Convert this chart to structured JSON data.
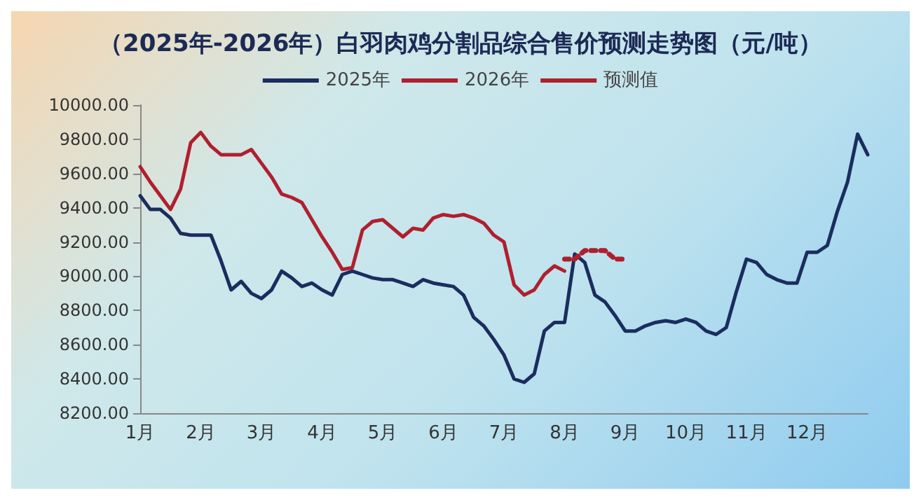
{
  "chart_data": {
    "type": "line",
    "title": "（2025年-2026年）白羽肉鸡分割品综合售价预测走势图（元/吨）",
    "categories": [
      "1月",
      null,
      null,
      null,
      null,
      null,
      "2月",
      null,
      null,
      null,
      null,
      null,
      "3月",
      null,
      null,
      null,
      null,
      null,
      "4月",
      null,
      null,
      null,
      null,
      null,
      "5月",
      null,
      null,
      null,
      null,
      null,
      "6月",
      null,
      null,
      null,
      null,
      null,
      "7月",
      null,
      null,
      null,
      null,
      null,
      "8月",
      null,
      null,
      null,
      null,
      null,
      "9月",
      null,
      null,
      null,
      null,
      null,
      "10月",
      null,
      null,
      null,
      null,
      null,
      "11月",
      null,
      null,
      null,
      null,
      null,
      "12月",
      null,
      null,
      null,
      null,
      null,
      null
    ],
    "series": [
      {
        "name": "2025年",
        "color": "#1b2d5e",
        "values": [
          9470,
          9390,
          9390,
          9340,
          9250,
          9240,
          9240,
          9240,
          9090,
          8920,
          8970,
          8900,
          8870,
          8920,
          9030,
          8990,
          8940,
          8960,
          8920,
          8890,
          9010,
          9030,
          9010,
          8990,
          8980,
          8980,
          8960,
          8940,
          8980,
          8960,
          8950,
          8940,
          8890,
          8760,
          8710,
          8630,
          8540,
          8400,
          8380,
          8430,
          8680,
          8730,
          8730,
          9130,
          9080,
          8890,
          8850,
          8770,
          8680,
          8680,
          8710,
          8730,
          8740,
          8730,
          8750,
          8730,
          8680,
          8660,
          8700,
          8910,
          9100,
          9080,
          9010,
          8980,
          8960,
          8960,
          9140,
          9140,
          9180,
          9380,
          9550,
          9830,
          9710
        ]
      },
      {
        "name": "2026年",
        "color": "#b01f2e",
        "values": [
          9640,
          9550,
          9470,
          9390,
          9510,
          9780,
          9840,
          9760,
          9710,
          9710,
          9710,
          9740,
          9660,
          9580,
          9480,
          9460,
          9430,
          9330,
          9230,
          9140,
          9040,
          9050,
          9270,
          9320,
          9330,
          9280,
          9230,
          9280,
          9270,
          9340,
          9360,
          9350,
          9360,
          9340,
          9310,
          9240,
          9200,
          8950,
          8890,
          8920,
          9010,
          9060,
          9030,
          null,
          null,
          null,
          null,
          null,
          null,
          null,
          null,
          null,
          null,
          null,
          null,
          null,
          null,
          null,
          null,
          null,
          null,
          null,
          null,
          null,
          null,
          null,
          null,
          null,
          null,
          null,
          null,
          null,
          null
        ]
      },
      {
        "name": "预测值",
        "color": "#b01f2e",
        "line_style": "dotted",
        "values": [
          null,
          null,
          null,
          null,
          null,
          null,
          null,
          null,
          null,
          null,
          null,
          null,
          null,
          null,
          null,
          null,
          null,
          null,
          null,
          null,
          null,
          null,
          null,
          null,
          null,
          null,
          null,
          null,
          null,
          null,
          null,
          null,
          null,
          null,
          null,
          null,
          null,
          null,
          null,
          null,
          null,
          null,
          9100,
          9100,
          9150,
          9150,
          9150,
          9100,
          9100,
          null,
          null,
          null,
          null,
          null,
          null,
          null,
          null,
          null,
          null,
          null,
          null,
          null,
          null,
          null,
          null,
          null,
          null,
          null,
          null,
          null,
          null,
          null,
          null
        ]
      }
    ],
    "ylim": [
      8200,
      10000
    ],
    "yticks": [
      {
        "value": 8200,
        "label": "8200.00"
      },
      {
        "value": 8400,
        "label": "8400.00"
      },
      {
        "value": 8600,
        "label": "8600.00"
      },
      {
        "value": 8800,
        "label": "8800.00"
      },
      {
        "value": 9000,
        "label": "9000.00"
      },
      {
        "value": 9200,
        "label": "9200.00"
      },
      {
        "value": 9400,
        "label": "9400.00"
      },
      {
        "value": 9600,
        "label": "9600.00"
      },
      {
        "value": 9800,
        "label": "9800.00"
      },
      {
        "value": 10000,
        "label": "10000.00"
      }
    ],
    "legend": "top",
    "grid": false
  }
}
